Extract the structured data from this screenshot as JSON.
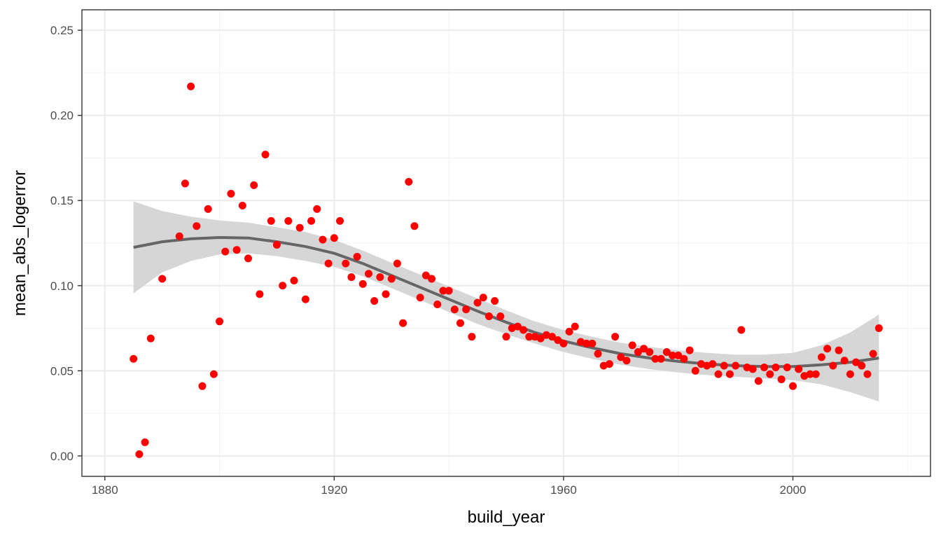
{
  "chart_data": {
    "type": "scatter",
    "title": "",
    "xlabel": "build_year",
    "ylabel": "mean_abs_logerror",
    "xlim": [
      1876,
      2024
    ],
    "ylim": [
      -0.012,
      0.262
    ],
    "x_ticks": [
      1880,
      1920,
      1960,
      2000
    ],
    "y_ticks": [
      0.0,
      0.05,
      0.1,
      0.15,
      0.2,
      0.25
    ],
    "x_tick_labels": [
      "1880",
      "1920",
      "1960",
      "2000"
    ],
    "y_tick_labels": [
      "0.00",
      "0.05",
      "0.10",
      "0.15",
      "0.20",
      "0.25"
    ],
    "grid": true,
    "legend": "none",
    "point_color": "#ff0000",
    "smooth_color": "#666666",
    "ribbon_color": "#d6d6d6",
    "points": [
      {
        "x": 1885,
        "y": 0.057
      },
      {
        "x": 1886,
        "y": 0.001
      },
      {
        "x": 1887,
        "y": 0.008
      },
      {
        "x": 1888,
        "y": 0.069
      },
      {
        "x": 1890,
        "y": 0.104
      },
      {
        "x": 1893,
        "y": 0.129
      },
      {
        "x": 1894,
        "y": 0.16
      },
      {
        "x": 1895,
        "y": 0.217
      },
      {
        "x": 1896,
        "y": 0.135
      },
      {
        "x": 1897,
        "y": 0.041
      },
      {
        "x": 1898,
        "y": 0.145
      },
      {
        "x": 1899,
        "y": 0.048
      },
      {
        "x": 1900,
        "y": 0.079
      },
      {
        "x": 1901,
        "y": 0.12
      },
      {
        "x": 1902,
        "y": 0.154
      },
      {
        "x": 1903,
        "y": 0.121
      },
      {
        "x": 1904,
        "y": 0.147
      },
      {
        "x": 1905,
        "y": 0.116
      },
      {
        "x": 1906,
        "y": 0.159
      },
      {
        "x": 1907,
        "y": 0.095
      },
      {
        "x": 1908,
        "y": 0.177
      },
      {
        "x": 1909,
        "y": 0.138
      },
      {
        "x": 1910,
        "y": 0.124
      },
      {
        "x": 1911,
        "y": 0.1
      },
      {
        "x": 1912,
        "y": 0.138
      },
      {
        "x": 1913,
        "y": 0.103
      },
      {
        "x": 1914,
        "y": 0.134
      },
      {
        "x": 1915,
        "y": 0.092
      },
      {
        "x": 1916,
        "y": 0.138
      },
      {
        "x": 1917,
        "y": 0.145
      },
      {
        "x": 1918,
        "y": 0.127
      },
      {
        "x": 1919,
        "y": 0.113
      },
      {
        "x": 1920,
        "y": 0.128
      },
      {
        "x": 1921,
        "y": 0.138
      },
      {
        "x": 1922,
        "y": 0.113
      },
      {
        "x": 1923,
        "y": 0.105
      },
      {
        "x": 1924,
        "y": 0.117
      },
      {
        "x": 1925,
        "y": 0.101
      },
      {
        "x": 1926,
        "y": 0.107
      },
      {
        "x": 1927,
        "y": 0.091
      },
      {
        "x": 1928,
        "y": 0.105
      },
      {
        "x": 1929,
        "y": 0.095
      },
      {
        "x": 1930,
        "y": 0.104
      },
      {
        "x": 1931,
        "y": 0.113
      },
      {
        "x": 1932,
        "y": 0.078
      },
      {
        "x": 1933,
        "y": 0.161
      },
      {
        "x": 1934,
        "y": 0.135
      },
      {
        "x": 1935,
        "y": 0.093
      },
      {
        "x": 1936,
        "y": 0.106
      },
      {
        "x": 1937,
        "y": 0.104
      },
      {
        "x": 1938,
        "y": 0.089
      },
      {
        "x": 1939,
        "y": 0.097
      },
      {
        "x": 1940,
        "y": 0.097
      },
      {
        "x": 1941,
        "y": 0.086
      },
      {
        "x": 1942,
        "y": 0.078
      },
      {
        "x": 1943,
        "y": 0.086
      },
      {
        "x": 1944,
        "y": 0.07
      },
      {
        "x": 1945,
        "y": 0.09
      },
      {
        "x": 1946,
        "y": 0.093
      },
      {
        "x": 1947,
        "y": 0.082
      },
      {
        "x": 1948,
        "y": 0.091
      },
      {
        "x": 1949,
        "y": 0.082
      },
      {
        "x": 1950,
        "y": 0.07
      },
      {
        "x": 1951,
        "y": 0.075
      },
      {
        "x": 1952,
        "y": 0.076
      },
      {
        "x": 1953,
        "y": 0.074
      },
      {
        "x": 1954,
        "y": 0.07
      },
      {
        "x": 1955,
        "y": 0.07
      },
      {
        "x": 1956,
        "y": 0.069
      },
      {
        "x": 1957,
        "y": 0.071
      },
      {
        "x": 1958,
        "y": 0.07
      },
      {
        "x": 1959,
        "y": 0.068
      },
      {
        "x": 1960,
        "y": 0.066
      },
      {
        "x": 1961,
        "y": 0.073
      },
      {
        "x": 1962,
        "y": 0.076
      },
      {
        "x": 1963,
        "y": 0.067
      },
      {
        "x": 1964,
        "y": 0.066
      },
      {
        "x": 1965,
        "y": 0.066
      },
      {
        "x": 1966,
        "y": 0.06
      },
      {
        "x": 1967,
        "y": 0.053
      },
      {
        "x": 1968,
        "y": 0.054
      },
      {
        "x": 1969,
        "y": 0.07
      },
      {
        "x": 1970,
        "y": 0.058
      },
      {
        "x": 1971,
        "y": 0.056
      },
      {
        "x": 1972,
        "y": 0.065
      },
      {
        "x": 1973,
        "y": 0.061
      },
      {
        "x": 1974,
        "y": 0.063
      },
      {
        "x": 1975,
        "y": 0.061
      },
      {
        "x": 1976,
        "y": 0.057
      },
      {
        "x": 1977,
        "y": 0.057
      },
      {
        "x": 1978,
        "y": 0.061
      },
      {
        "x": 1979,
        "y": 0.059
      },
      {
        "x": 1980,
        "y": 0.059
      },
      {
        "x": 1981,
        "y": 0.057
      },
      {
        "x": 1982,
        "y": 0.062
      },
      {
        "x": 1983,
        "y": 0.05
      },
      {
        "x": 1984,
        "y": 0.054
      },
      {
        "x": 1985,
        "y": 0.053
      },
      {
        "x": 1986,
        "y": 0.054
      },
      {
        "x": 1987,
        "y": 0.048
      },
      {
        "x": 1988,
        "y": 0.053
      },
      {
        "x": 1989,
        "y": 0.048
      },
      {
        "x": 1990,
        "y": 0.053
      },
      {
        "x": 1991,
        "y": 0.074
      },
      {
        "x": 1992,
        "y": 0.052
      },
      {
        "x": 1993,
        "y": 0.051
      },
      {
        "x": 1994,
        "y": 0.044
      },
      {
        "x": 1995,
        "y": 0.052
      },
      {
        "x": 1996,
        "y": 0.048
      },
      {
        "x": 1997,
        "y": 0.052
      },
      {
        "x": 1998,
        "y": 0.045
      },
      {
        "x": 1999,
        "y": 0.052
      },
      {
        "x": 2000,
        "y": 0.041
      },
      {
        "x": 2001,
        "y": 0.051
      },
      {
        "x": 2002,
        "y": 0.047
      },
      {
        "x": 2003,
        "y": 0.048
      },
      {
        "x": 2004,
        "y": 0.048
      },
      {
        "x": 2005,
        "y": 0.058
      },
      {
        "x": 2006,
        "y": 0.063
      },
      {
        "x": 2007,
        "y": 0.053
      },
      {
        "x": 2008,
        "y": 0.062
      },
      {
        "x": 2009,
        "y": 0.056
      },
      {
        "x": 2010,
        "y": 0.048
      },
      {
        "x": 2011,
        "y": 0.055
      },
      {
        "x": 2012,
        "y": 0.053
      },
      {
        "x": 2013,
        "y": 0.048
      },
      {
        "x": 2014,
        "y": 0.06
      },
      {
        "x": 2015,
        "y": 0.075
      }
    ],
    "smooth": [
      {
        "x": 1885,
        "y": 0.1225,
        "lo": 0.0955,
        "hi": 0.1495
      },
      {
        "x": 1890,
        "y": 0.1258,
        "lo": 0.1078,
        "hi": 0.1438
      },
      {
        "x": 1895,
        "y": 0.1275,
        "lo": 0.1145,
        "hi": 0.1405
      },
      {
        "x": 1900,
        "y": 0.1283,
        "lo": 0.1183,
        "hi": 0.1383
      },
      {
        "x": 1905,
        "y": 0.128,
        "lo": 0.119,
        "hi": 0.137
      },
      {
        "x": 1910,
        "y": 0.1258,
        "lo": 0.1173,
        "hi": 0.1343
      },
      {
        "x": 1915,
        "y": 0.123,
        "lo": 0.1145,
        "hi": 0.1315
      },
      {
        "x": 1920,
        "y": 0.119,
        "lo": 0.111,
        "hi": 0.127
      },
      {
        "x": 1925,
        "y": 0.113,
        "lo": 0.1055,
        "hi": 0.1205
      },
      {
        "x": 1930,
        "y": 0.106,
        "lo": 0.0985,
        "hi": 0.1135
      },
      {
        "x": 1935,
        "y": 0.099,
        "lo": 0.0915,
        "hi": 0.1065
      },
      {
        "x": 1940,
        "y": 0.092,
        "lo": 0.0845,
        "hi": 0.0995
      },
      {
        "x": 1945,
        "y": 0.085,
        "lo": 0.0775,
        "hi": 0.0925
      },
      {
        "x": 1950,
        "y": 0.0785,
        "lo": 0.0715,
        "hi": 0.0855
      },
      {
        "x": 1955,
        "y": 0.0725,
        "lo": 0.066,
        "hi": 0.079
      },
      {
        "x": 1960,
        "y": 0.0675,
        "lo": 0.061,
        "hi": 0.074
      },
      {
        "x": 1965,
        "y": 0.0635,
        "lo": 0.057,
        "hi": 0.07
      },
      {
        "x": 1970,
        "y": 0.06,
        "lo": 0.0535,
        "hi": 0.0665
      },
      {
        "x": 1975,
        "y": 0.0575,
        "lo": 0.051,
        "hi": 0.064
      },
      {
        "x": 1980,
        "y": 0.0555,
        "lo": 0.049,
        "hi": 0.062
      },
      {
        "x": 1985,
        "y": 0.054,
        "lo": 0.0475,
        "hi": 0.0605
      },
      {
        "x": 1990,
        "y": 0.053,
        "lo": 0.0465,
        "hi": 0.0595
      },
      {
        "x": 1995,
        "y": 0.0525,
        "lo": 0.0455,
        "hi": 0.0595
      },
      {
        "x": 2000,
        "y": 0.0525,
        "lo": 0.0445,
        "hi": 0.0605
      },
      {
        "x": 2005,
        "y": 0.0535,
        "lo": 0.042,
        "hi": 0.065
      },
      {
        "x": 2010,
        "y": 0.055,
        "lo": 0.0375,
        "hi": 0.0725
      },
      {
        "x": 2015,
        "y": 0.0575,
        "lo": 0.032,
        "hi": 0.083
      }
    ]
  }
}
